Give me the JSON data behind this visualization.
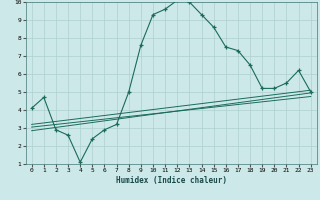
{
  "xlabel": "Humidex (Indice chaleur)",
  "bg_color": "#cde8e8",
  "grid_color": "#aed0d0",
  "line_color": "#1a6b5a",
  "xlim": [
    -0.5,
    23.5
  ],
  "ylim": [
    1,
    10
  ],
  "xticks": [
    0,
    1,
    2,
    3,
    4,
    5,
    6,
    7,
    8,
    9,
    10,
    11,
    12,
    13,
    14,
    15,
    16,
    17,
    18,
    19,
    20,
    21,
    22,
    23
  ],
  "yticks": [
    1,
    2,
    3,
    4,
    5,
    6,
    7,
    8,
    9,
    10
  ],
  "main_curve_x": [
    0,
    1,
    2,
    3,
    4,
    5,
    6,
    7,
    8,
    9,
    10,
    11,
    12,
    13,
    14,
    15,
    16,
    17,
    18,
    19,
    20,
    21,
    22,
    23
  ],
  "main_curve_y": [
    4.1,
    4.7,
    2.9,
    2.6,
    1.1,
    2.4,
    2.9,
    3.2,
    5.0,
    7.6,
    9.3,
    9.6,
    10.1,
    10.0,
    9.3,
    8.6,
    7.5,
    7.3,
    6.5,
    5.2,
    5.2,
    5.5,
    6.2,
    5.0
  ],
  "line1_x": [
    0,
    23
  ],
  "line1_y": [
    3.05,
    4.75
  ],
  "line2_x": [
    0,
    23
  ],
  "line2_y": [
    2.85,
    4.95
  ],
  "line3_x": [
    0,
    23
  ],
  "line3_y": [
    3.2,
    5.1
  ]
}
